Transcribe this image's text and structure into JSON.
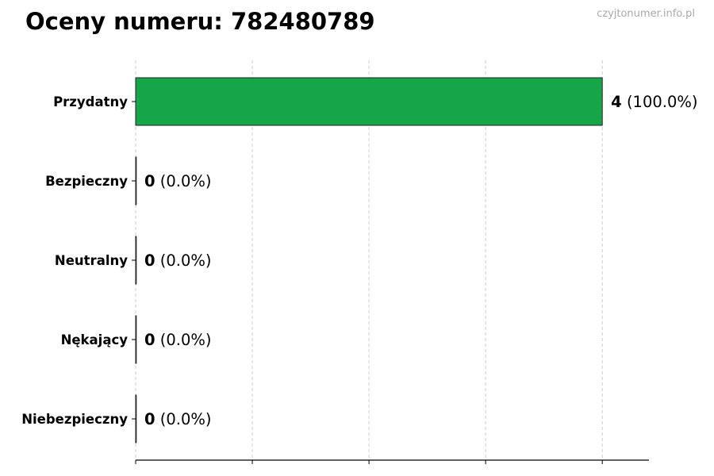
{
  "watermark": "czyjtonumer.info.pl",
  "chart_data": {
    "type": "bar",
    "orientation": "horizontal",
    "title": "Oceny numeru: 782480789",
    "categories": [
      "Przydatny",
      "Bezpieczny",
      "Neutralny",
      "Nękający",
      "Niebezpieczny"
    ],
    "values": [
      4,
      0,
      0,
      0,
      0
    ],
    "percent_labels": [
      "(100.0%)",
      "(0.0%)",
      "(0.0%)",
      "(0.0%)",
      "(0.0%)"
    ],
    "bar_color": "#17a54a",
    "xlim": [
      0,
      4.4
    ],
    "xticks": [
      0,
      1,
      2,
      3,
      4
    ],
    "xtick_labels_shown": false,
    "grid": "x dashed",
    "xlabel": "",
    "ylabel": ""
  }
}
